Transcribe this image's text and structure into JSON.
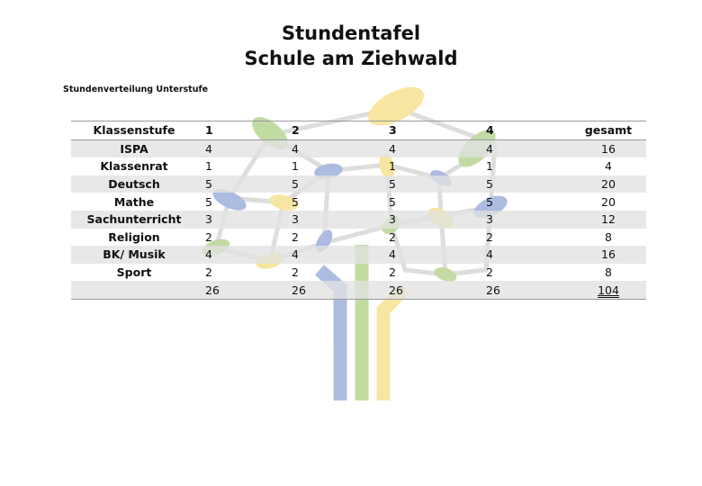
{
  "header": {
    "title_line1": "Stundentafel",
    "title_line2": "Schule am Ziehwald"
  },
  "table": {
    "caption": "Stundenverteilung Unterstufe",
    "columns": [
      "Klassenstufe",
      "1",
      "2",
      "3",
      "4",
      "gesamt"
    ],
    "rows": [
      {
        "subject": "ISPA",
        "values": [
          "4",
          "4",
          "4",
          "4"
        ],
        "total": "16"
      },
      {
        "subject": "Klassenrat",
        "values": [
          "1",
          "1",
          "1",
          "1"
        ],
        "total": "4"
      },
      {
        "subject": "Deutsch",
        "values": [
          "5",
          "5",
          "5",
          "5"
        ],
        "total": "20"
      },
      {
        "subject": "Mathe",
        "values": [
          "5",
          "5",
          "5",
          "5"
        ],
        "total": "20"
      },
      {
        "subject": "Sachunterricht",
        "values": [
          "3",
          "3",
          "3",
          "3"
        ],
        "total": "12"
      },
      {
        "subject": "Religion",
        "values": [
          "2",
          "2",
          "2",
          "2"
        ],
        "total": "8"
      },
      {
        "subject": "BK/ Musik",
        "values": [
          "4",
          "4",
          "4",
          "4"
        ],
        "total": "16"
      },
      {
        "subject": "Sport",
        "values": [
          "2",
          "2",
          "2",
          "2"
        ],
        "total": "8"
      }
    ],
    "sums": {
      "values": [
        "26",
        "26",
        "26",
        "26"
      ],
      "total": "104"
    }
  },
  "colors": {
    "leaf_blue": "#5b79c2",
    "leaf_green": "#86b94a",
    "leaf_yellow": "#f1cf45",
    "branch_gray": "#bdbdbd",
    "row_band": "#e2e2e2"
  },
  "watermark": {
    "icon": "tree-logo-icon"
  }
}
